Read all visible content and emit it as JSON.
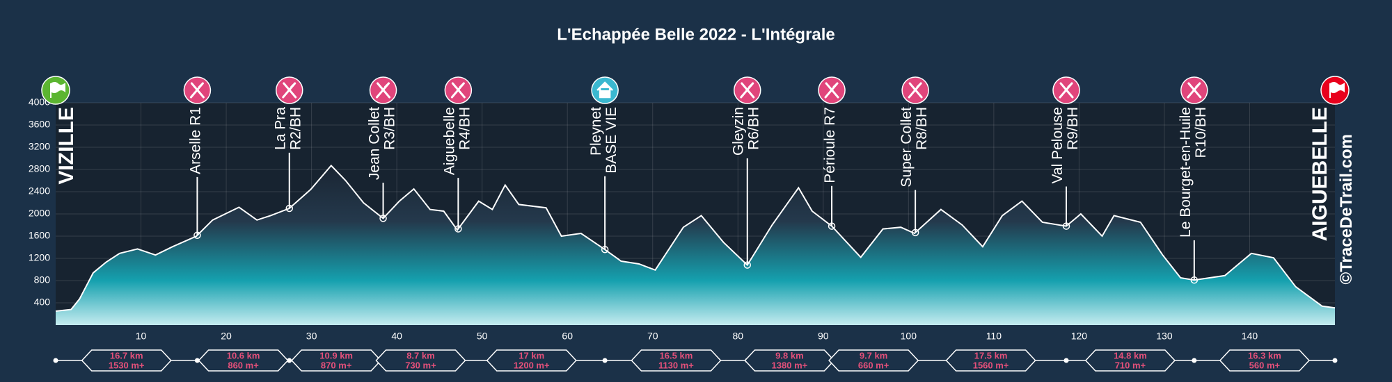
{
  "chart_data": {
    "type": "area",
    "title": "L'Echappée Belle 2022 - L'Intégrale",
    "xlim": [
      0,
      150
    ],
    "ylim": [
      0,
      4000
    ],
    "xticks": [
      10,
      20,
      30,
      40,
      50,
      60,
      70,
      80,
      90,
      100,
      110,
      120,
      130,
      140
    ],
    "yticks": [
      400,
      800,
      1200,
      1600,
      2000,
      2400,
      2800,
      3200,
      3600,
      4000
    ],
    "grid": true,
    "x": [
      0,
      1.8,
      2.8,
      4.4,
      5.9,
      7.5,
      9.6,
      11.7,
      13.7,
      16.5,
      18.4,
      21.5,
      23.6,
      25.2,
      27.4,
      29.9,
      32.3,
      34.0,
      36.1,
      38.4,
      40.3,
      42.0,
      43.9,
      45.5,
      47.1,
      49.6,
      51.2,
      52.7,
      54.3,
      57.5,
      59.3,
      61.6,
      64.3,
      66.3,
      68.4,
      70.3,
      73.6,
      75.7,
      78.3,
      81.1,
      84.0,
      87.1,
      88.7,
      91.0,
      94.4,
      97.0,
      99.1,
      100.7,
      103.8,
      106.3,
      108.7,
      111.0,
      113.3,
      115.7,
      118.5,
      120.2,
      122.7,
      124.1,
      127.2,
      129.8,
      131.9,
      133.5,
      137.1,
      140.2,
      142.8,
      145.4,
      148.5,
      150
    ],
    "values": [
      250,
      280,
      470,
      940,
      1130,
      1290,
      1370,
      1260,
      1410,
      1600,
      1890,
      2120,
      1890,
      1970,
      2100,
      2440,
      2870,
      2600,
      2200,
      1920,
      2230,
      2450,
      2080,
      2050,
      1710,
      2230,
      2080,
      2520,
      2170,
      2110,
      1600,
      1650,
      1370,
      1150,
      1100,
      990,
      1760,
      1970,
      1490,
      1080,
      1800,
      2470,
      2050,
      1780,
      1220,
      1730,
      1760,
      1650,
      2080,
      1800,
      1410,
      1970,
      2230,
      1850,
      1780,
      2000,
      1600,
      1970,
      1850,
      1260,
      850,
      810,
      890,
      1290,
      1210,
      690,
      340,
      310
    ],
    "line_color": "#ffffff",
    "start": {
      "label": "VIZILLE",
      "color": "#5cb531"
    },
    "finish": {
      "label": "AIGUEBELLE",
      "color": "#e8001c"
    },
    "markers": [
      {
        "x": 16.6,
        "lines": [
          "Arselle R1"
        ],
        "color": "#e0457b"
      },
      {
        "x": 27.4,
        "lines": [
          "La Pra",
          "R2/BH"
        ],
        "color": "#e0457b"
      },
      {
        "x": 38.4,
        "lines": [
          "Jean Collet",
          "R3/BH"
        ],
        "color": "#e0457b"
      },
      {
        "x": 47.2,
        "lines": [
          "Aiguebelle",
          "R4/BH"
        ],
        "color": "#e0457b"
      },
      {
        "x": 64.4,
        "lines": [
          "Pleynet",
          "BASE VIE"
        ],
        "color": "#3bb8d0"
      },
      {
        "x": 81.1,
        "lines": [
          "Gleyzin",
          "R6/BH"
        ],
        "color": "#e0457b"
      },
      {
        "x": 91.0,
        "lines": [
          "Périoule R7"
        ],
        "color": "#e0457b"
      },
      {
        "x": 100.8,
        "lines": [
          "Super Collet",
          "R8/BH"
        ],
        "color": "#e0457b"
      },
      {
        "x": 118.5,
        "lines": [
          "Val Pelouse",
          "R9/BH"
        ],
        "color": "#e0457b"
      },
      {
        "x": 133.5,
        "lines": [
          "Le Bourget-en-Huile",
          "R10/BH"
        ],
        "color": "#e0457b"
      }
    ],
    "stages": [
      {
        "distance": "16.7 km",
        "gain": "1530 m+"
      },
      {
        "distance": "10.6 km",
        "gain": "860 m+"
      },
      {
        "distance": "10.9 km",
        "gain": "870 m+"
      },
      {
        "distance": "8.7 km",
        "gain": "730 m+"
      },
      {
        "distance": "17 km",
        "gain": "1200 m+"
      },
      {
        "distance": "16.5 km",
        "gain": "1130 m+"
      },
      {
        "distance": "9.8 km",
        "gain": "1380 m+"
      },
      {
        "distance": "9.7 km",
        "gain": "660 m+"
      },
      {
        "distance": "17.5 km",
        "gain": "1560 m+"
      },
      {
        "distance": "14.8 km",
        "gain": "710 m+"
      },
      {
        "distance": "16.3 km",
        "gain": "560 m+"
      }
    ],
    "watermark": "©TraceDeTrail.com"
  }
}
